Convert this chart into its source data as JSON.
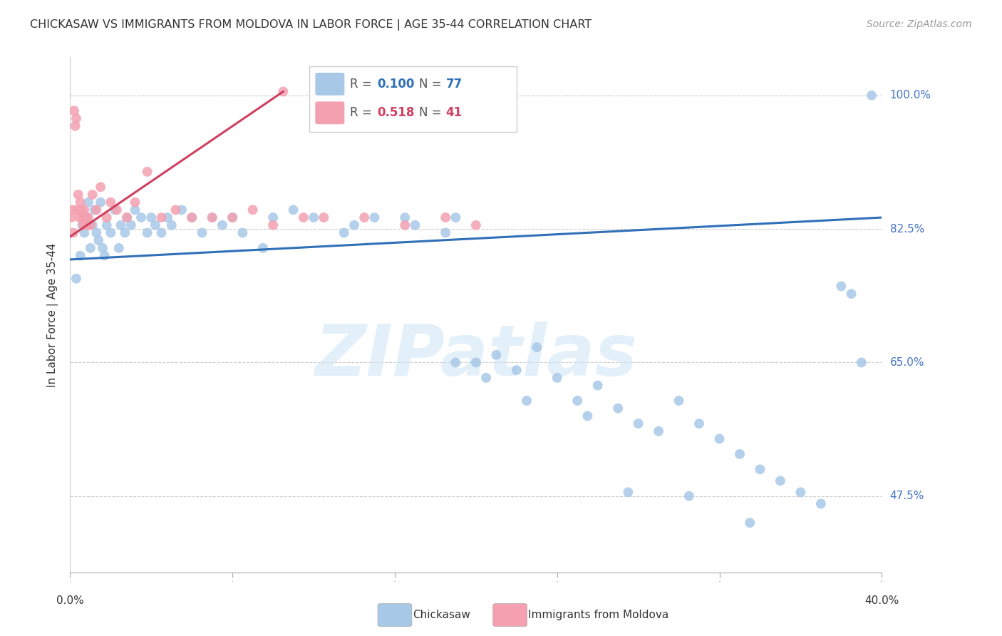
{
  "title": "CHICKASAW VS IMMIGRANTS FROM MOLDOVA IN LABOR FORCE | AGE 35-44 CORRELATION CHART",
  "source": "Source: ZipAtlas.com",
  "ylabel": "In Labor Force | Age 35-44",
  "yticks": [
    47.5,
    65.0,
    82.5,
    100.0
  ],
  "ytick_labels": [
    "47.5%",
    "65.0%",
    "82.5%",
    "100.0%"
  ],
  "legend_blue_r": "0.100",
  "legend_blue_n": "77",
  "legend_pink_r": "0.518",
  "legend_pink_n": "41",
  "blue_color": "#a8c8e8",
  "pink_color": "#f4a0b0",
  "blue_line_color": "#3070b8",
  "pink_line_color": "#d04060",
  "watermark": "ZIPatlas",
  "xmin": 0.0,
  "xmax": 40.0,
  "ymin": 37.5,
  "ymax": 105.0,
  "blue_trendline_x": [
    0.0,
    40.0
  ],
  "blue_trendline_y": [
    78.5,
    84.0
  ],
  "pink_trendline_x": [
    0.0,
    10.5
  ],
  "pink_trendline_y": [
    81.5,
    100.5
  ],
  "blue_x": [
    0.3,
    0.5,
    0.6,
    0.7,
    0.8,
    0.9,
    1.0,
    1.1,
    1.2,
    1.3,
    1.4,
    1.5,
    1.6,
    1.7,
    1.8,
    2.0,
    2.2,
    2.4,
    2.5,
    2.7,
    2.8,
    3.0,
    3.2,
    3.5,
    3.8,
    4.0,
    4.2,
    4.5,
    4.8,
    5.0,
    5.5,
    6.0,
    6.5,
    7.0,
    7.5,
    8.0,
    8.5,
    9.5,
    10.0,
    11.0,
    12.0,
    13.5,
    14.0,
    15.0,
    16.5,
    17.0,
    18.5,
    19.0,
    20.0,
    21.0,
    22.0,
    23.0,
    24.0,
    25.0,
    26.0,
    27.0,
    28.0,
    29.0,
    30.0,
    31.0,
    32.0,
    33.0,
    34.0,
    35.0,
    36.0,
    37.0,
    38.0,
    38.5,
    39.0,
    39.5,
    19.0,
    20.5,
    22.5,
    25.5,
    27.5,
    30.5,
    33.5
  ],
  "blue_y": [
    76.0,
    79.0,
    83.0,
    82.0,
    84.0,
    86.0,
    80.0,
    83.0,
    85.0,
    82.0,
    81.0,
    86.0,
    80.0,
    79.0,
    83.0,
    82.0,
    85.0,
    80.0,
    83.0,
    82.0,
    84.0,
    83.0,
    85.0,
    84.0,
    82.0,
    84.0,
    83.0,
    82.0,
    84.0,
    83.0,
    85.0,
    84.0,
    82.0,
    84.0,
    83.0,
    84.0,
    82.0,
    80.0,
    84.0,
    85.0,
    84.0,
    82.0,
    83.0,
    84.0,
    84.0,
    83.0,
    82.0,
    84.0,
    65.0,
    66.0,
    64.0,
    67.0,
    63.0,
    60.0,
    62.0,
    59.0,
    57.0,
    56.0,
    60.0,
    57.0,
    55.0,
    53.0,
    51.0,
    49.5,
    48.0,
    46.5,
    75.0,
    74.0,
    65.0,
    100.0,
    65.0,
    63.0,
    60.0,
    58.0,
    48.0,
    47.5,
    44.0
  ],
  "pink_x": [
    0.05,
    0.1,
    0.15,
    0.2,
    0.25,
    0.3,
    0.35,
    0.4,
    0.45,
    0.5,
    0.55,
    0.6,
    0.65,
    0.7,
    0.75,
    0.8,
    0.9,
    1.0,
    1.1,
    1.3,
    1.5,
    1.8,
    2.0,
    2.3,
    2.8,
    3.2,
    3.8,
    4.5,
    5.2,
    6.0,
    7.0,
    8.0,
    9.0,
    10.0,
    10.5,
    11.5,
    12.5,
    14.5,
    16.5,
    18.5,
    20.0
  ],
  "pink_y": [
    84.0,
    85.0,
    82.0,
    98.0,
    96.0,
    97.0,
    85.0,
    87.0,
    84.0,
    86.0,
    85.0,
    84.0,
    83.0,
    85.0,
    84.0,
    83.0,
    84.0,
    83.0,
    87.0,
    85.0,
    88.0,
    84.0,
    86.0,
    85.0,
    84.0,
    86.0,
    90.0,
    84.0,
    85.0,
    84.0,
    84.0,
    84.0,
    85.0,
    83.0,
    100.5,
    84.0,
    84.0,
    84.0,
    83.0,
    84.0,
    83.0
  ]
}
